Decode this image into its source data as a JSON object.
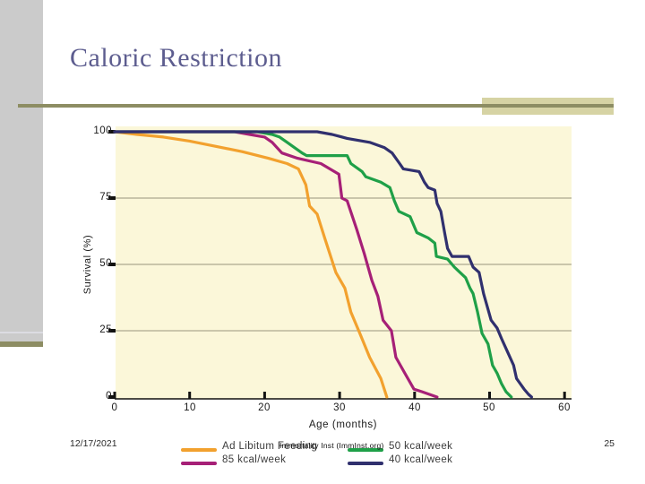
{
  "slide": {
    "title": "Caloric Restriction",
    "watermark": "Immortality Inst (ImmInst.org)",
    "footer": {
      "date": "12/17/2021",
      "page": "25"
    },
    "accents": {
      "title_color": "#5d5d8f",
      "rule_olive": "#8d8d63",
      "rule_tan": "#d6d3a4",
      "sidebar_gray": "#cbcbcb"
    }
  },
  "chart_data": {
    "type": "line",
    "title": "",
    "xlabel": "Age (months)",
    "ylabel": "Survival (%)",
    "xlim": [
      0,
      61
    ],
    "ylim": [
      0,
      100
    ],
    "xticks": [
      "0",
      "10",
      "20",
      "30",
      "40",
      "50",
      "60"
    ],
    "yticks": [
      "100",
      "75",
      "50",
      "25",
      "0"
    ],
    "gridline_values": [
      75,
      50,
      25
    ],
    "grid": "horizontal",
    "legend_position": "below",
    "plot_bg": "#fbf7d9",
    "series": [
      {
        "name": "Ad Libitum Feeding",
        "color": "#f2a12e",
        "points": [
          [
            0,
            100
          ],
          [
            3,
            99
          ],
          [
            6.5,
            98
          ],
          [
            10,
            96.5
          ],
          [
            13.5,
            94.5
          ],
          [
            17,
            92.5
          ],
          [
            20.5,
            90
          ],
          [
            23,
            88
          ],
          [
            24.5,
            86
          ],
          [
            25.5,
            80
          ],
          [
            26,
            72
          ],
          [
            27,
            69
          ],
          [
            28,
            60
          ],
          [
            28.7,
            54
          ],
          [
            29.5,
            47
          ],
          [
            30.7,
            41
          ],
          [
            31.5,
            32
          ],
          [
            32.7,
            24
          ],
          [
            34,
            15
          ],
          [
            35.5,
            7
          ],
          [
            36.3,
            0
          ]
        ]
      },
      {
        "name": "85 kcal/week",
        "color": "#a62077",
        "points": [
          [
            0,
            100
          ],
          [
            16,
            100
          ],
          [
            18,
            99
          ],
          [
            20,
            98
          ],
          [
            21,
            96
          ],
          [
            22.3,
            92
          ],
          [
            24.4,
            90
          ],
          [
            27.5,
            88
          ],
          [
            29.9,
            84
          ],
          [
            30.3,
            75
          ],
          [
            31,
            74
          ],
          [
            32.3,
            63
          ],
          [
            33.3,
            54
          ],
          [
            34.3,
            44
          ],
          [
            35.1,
            38
          ],
          [
            35.8,
            29
          ],
          [
            36.9,
            25
          ],
          [
            37.5,
            15
          ],
          [
            38.7,
            9
          ],
          [
            39.9,
            3
          ],
          [
            41,
            2
          ],
          [
            43,
            0
          ]
        ]
      },
      {
        "name": "50 kcal/week",
        "color": "#1fa048",
        "points": [
          [
            0,
            100
          ],
          [
            19,
            100
          ],
          [
            21,
            99
          ],
          [
            22,
            98
          ],
          [
            23,
            96
          ],
          [
            24,
            94
          ],
          [
            25,
            92
          ],
          [
            25.6,
            91
          ],
          [
            31,
            91
          ],
          [
            31.5,
            88
          ],
          [
            33,
            85
          ],
          [
            33.5,
            83
          ],
          [
            35.5,
            81
          ],
          [
            36.7,
            79
          ],
          [
            37.3,
            74
          ],
          [
            37.9,
            70
          ],
          [
            39.4,
            68
          ],
          [
            40.3,
            62
          ],
          [
            41.8,
            60
          ],
          [
            42.7,
            58
          ],
          [
            42.9,
            53
          ],
          [
            44.4,
            52
          ],
          [
            45.3,
            49
          ],
          [
            46.8,
            45
          ],
          [
            47.4,
            41
          ],
          [
            47.8,
            39
          ],
          [
            48.4,
            32
          ],
          [
            49,
            24
          ],
          [
            49.8,
            20
          ],
          [
            50.4,
            12
          ],
          [
            51,
            9
          ],
          [
            51.6,
            5
          ],
          [
            52.2,
            2
          ],
          [
            52.9,
            0
          ]
        ]
      },
      {
        "name": "40 kcal/week",
        "color": "#30306e",
        "points": [
          [
            0,
            100
          ],
          [
            27,
            100
          ],
          [
            29,
            99
          ],
          [
            31,
            97.5
          ],
          [
            34,
            96
          ],
          [
            36,
            94
          ],
          [
            37,
            92
          ],
          [
            38,
            88
          ],
          [
            38.5,
            86
          ],
          [
            40.6,
            85
          ],
          [
            41.3,
            81
          ],
          [
            41.8,
            79
          ],
          [
            42.7,
            78
          ],
          [
            43,
            73
          ],
          [
            43.5,
            70
          ],
          [
            44,
            62
          ],
          [
            44.4,
            56
          ],
          [
            45,
            53
          ],
          [
            47.2,
            53
          ],
          [
            47.8,
            49
          ],
          [
            48.6,
            47
          ],
          [
            49.2,
            39
          ],
          [
            50.2,
            29
          ],
          [
            51,
            26
          ],
          [
            51.6,
            22
          ],
          [
            52.4,
            17
          ],
          [
            53.2,
            12
          ],
          [
            53.6,
            7
          ],
          [
            54.6,
            3
          ],
          [
            55.2,
            1
          ],
          [
            55.6,
            0
          ]
        ]
      }
    ]
  }
}
